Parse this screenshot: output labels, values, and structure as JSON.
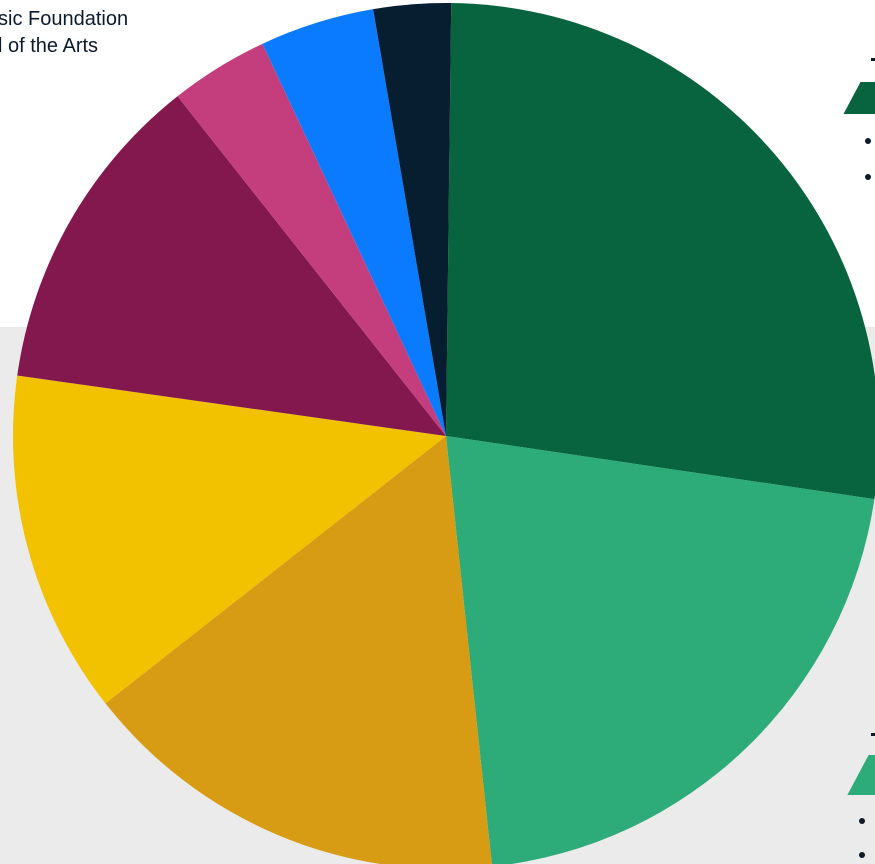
{
  "legend_lines": [
    "sic Foundation",
    "l of the Arts"
  ],
  "chart_data": {
    "type": "pie",
    "title": "",
    "slices": [
      {
        "value": 27.3,
        "color": "#08643f"
      },
      {
        "value": 21.1,
        "color": "#2dab78"
      },
      {
        "value": 16.2,
        "color": "#d79c13"
      },
      {
        "value": 12.9,
        "color": "#f2c200"
      },
      {
        "value": 12.2,
        "color": "#83184f"
      },
      {
        "value": 3.7,
        "color": "#c43e7e"
      },
      {
        "value": 4.3,
        "color": "#0a7bff"
      },
      {
        "value": 2.9,
        "color": "#061e30"
      }
    ]
  }
}
